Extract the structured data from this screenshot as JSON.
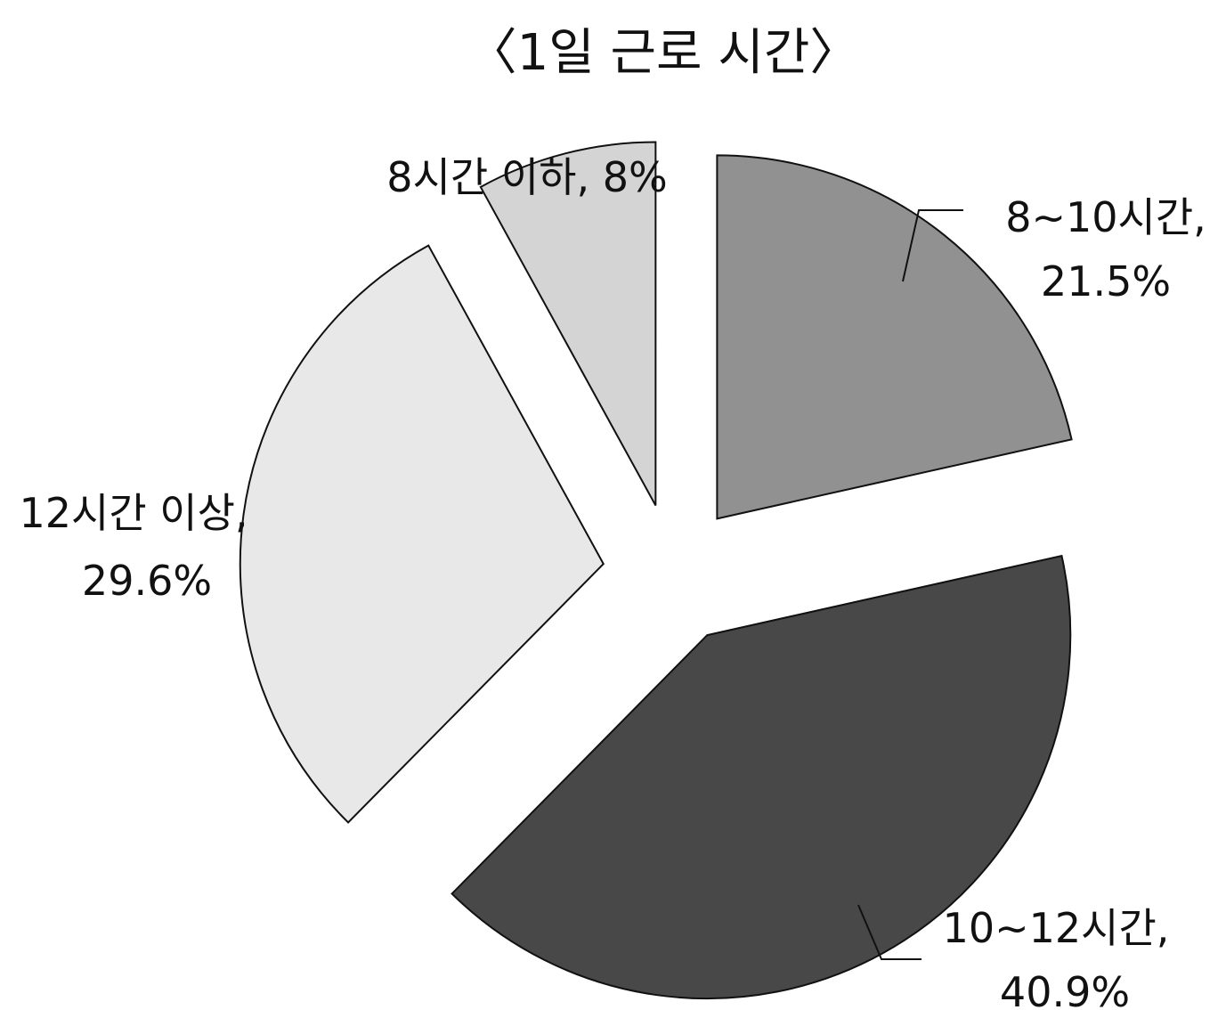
{
  "chart_data": {
    "type": "pie",
    "title": "〈1일 근로 시간〉",
    "slices": [
      {
        "label_line1": "8시간 이하, 8%",
        "label_line2": "",
        "value": 8,
        "color": "#d4d4d4"
      },
      {
        "label_line1": "8~10시간,",
        "label_line2": "21.5%",
        "value": 21.5,
        "color": "#919191"
      },
      {
        "label_line1": "10~12시간,",
        "label_line2": "40.9%",
        "value": 40.9,
        "color": "#484848"
      },
      {
        "label_line1": "12시간 이상,",
        "label_line2": "29.6%",
        "value": 29.6,
        "color": "#e8e8e8"
      }
    ],
    "exploded": true,
    "legend": "none"
  }
}
